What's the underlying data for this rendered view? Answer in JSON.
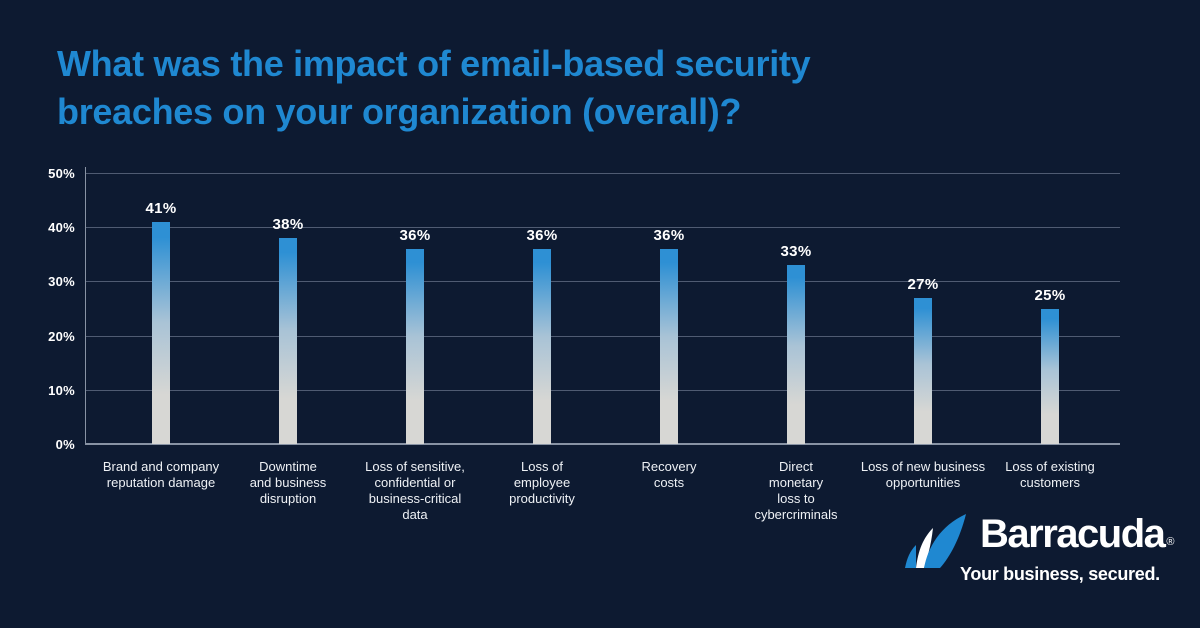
{
  "page": {
    "background": "#0d1a31"
  },
  "title": {
    "text": "What was the impact of email-based security\nbreaches on your organization (overall)?",
    "color": "#1f88d1"
  },
  "chart_data": {
    "type": "bar",
    "title": "What was the impact of email-based security breaches on your organization (overall)?",
    "categories": [
      "Brand and company\nreputation damage",
      "Downtime\nand business\ndisruption",
      "Loss of sensitive,\nconfidential or\nbusiness-critical\ndata",
      "Loss of\nemployee\nproductivity",
      "Recovery\ncosts",
      "Direct\nmonetary\nloss to\ncybercriminals",
      "Loss of new business\nopportunities",
      "Loss of existing\ncustomers"
    ],
    "values": [
      41,
      38,
      36,
      36,
      36,
      33,
      27,
      25
    ],
    "value_labels": [
      "41%",
      "38%",
      "36%",
      "36%",
      "36%",
      "33%",
      "27%",
      "25%"
    ],
    "xlabel": "",
    "ylabel": "",
    "ylim": [
      0,
      50
    ],
    "yticks": [
      0,
      10,
      20,
      30,
      40,
      50
    ],
    "ytick_labels": [
      "0%",
      "10%",
      "20%",
      "30%",
      "40%",
      "50%"
    ],
    "grid": true,
    "legend": false,
    "colors": {
      "bar_top": "#2e90d4",
      "bar_mid": "#a9c3d6",
      "bar_bottom": "#d7d7d4",
      "gridline": "#4f5b72",
      "axis": "#8893a4",
      "tick_label": "#ffffff",
      "value_label": "#ffffff",
      "category_label": "#eef1f5"
    }
  },
  "branding": {
    "logo_icon": "barracuda-fin-icon",
    "wordmark": "Barracuda",
    "registered_mark": "®",
    "tagline": "Your business, secured.",
    "icon_color": "#1f88d1",
    "text_color": "#ffffff"
  }
}
